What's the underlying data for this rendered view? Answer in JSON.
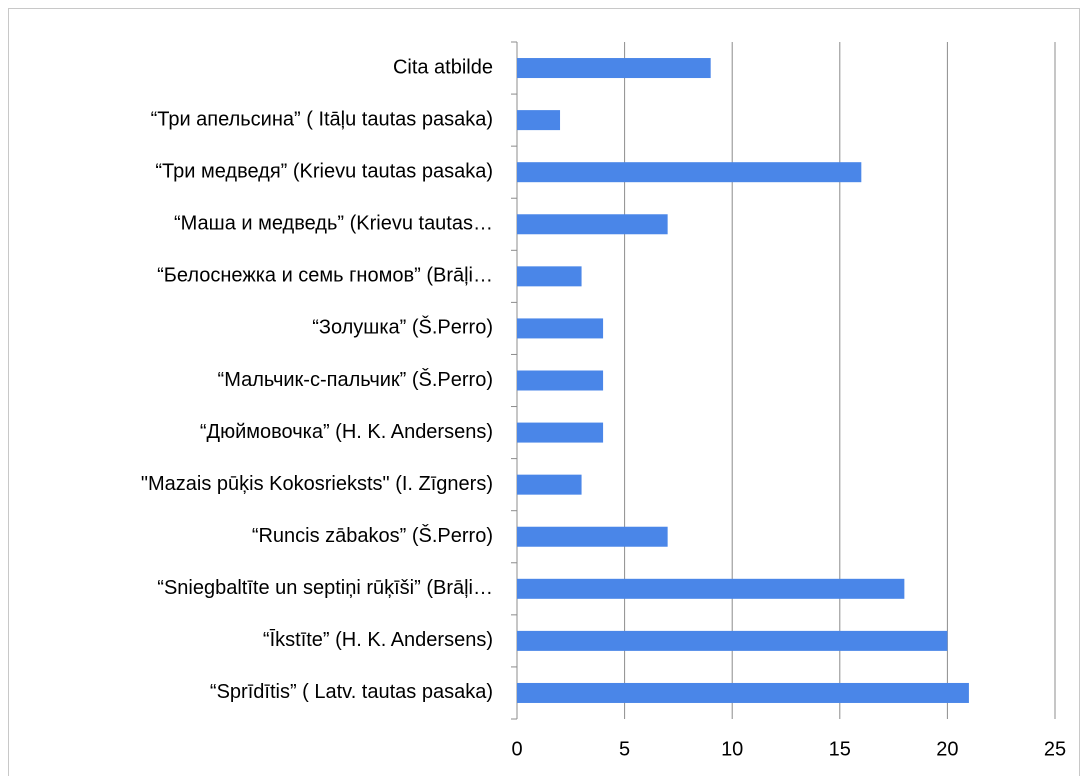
{
  "chart_data": {
    "type": "bar",
    "orientation": "horizontal",
    "categories": [
      "Cita atbilde",
      "“Три апельсина” ( Itāļu tautas pasaka)",
      "“Три медведя” (Krievu tautas pasaka)",
      "“Маша и медведь” (Krievu tautas…",
      "“Белоснежка и семь гномов” (Brāļi…",
      "“Золушка” (Š.Perro)",
      "“Мальчик-с-пальчик” (Š.Perro)",
      "“Дюймовочка” (H. K. Andersens)",
      "\"Mazais pūķis Kokosrieksts\" (I. Zīgners)",
      "“Runcis zābakos” (Š.Perro)",
      "“Sniegbaltīte un septiņi rūķīši” (Brāļi…",
      "“Īkstīte” (H. K. Andersens)",
      "“Sprīdītis” ( Latv. tautas pasaka)"
    ],
    "values": [
      9,
      2,
      16,
      7,
      3,
      4,
      4,
      4,
      3,
      7,
      18,
      20,
      21
    ],
    "color": "#4a86e8",
    "xlim": [
      0,
      25
    ],
    "xticks": [
      0,
      5,
      10,
      15,
      20,
      25
    ],
    "grid": true
  }
}
